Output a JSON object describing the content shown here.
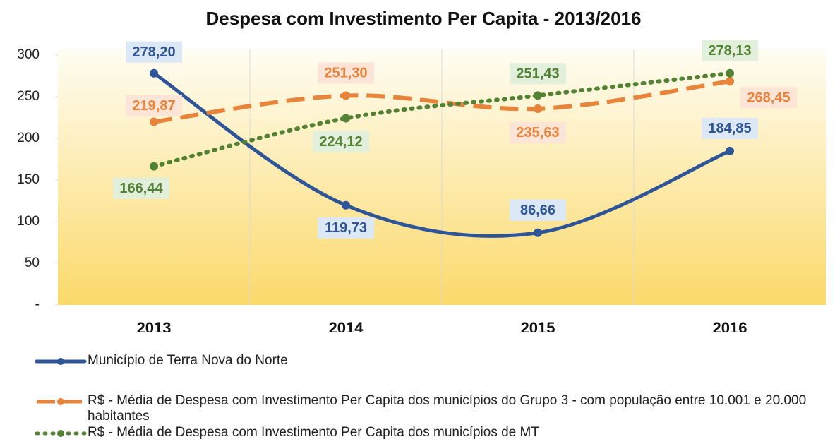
{
  "chart_data": {
    "type": "line",
    "title": "Despesa com Investimento Per Capita - 2013/2016",
    "categories": [
      "2013",
      "2014",
      "2015",
      "2016"
    ],
    "ylim": [
      0,
      300
    ],
    "yticks": [
      {
        "value": 0,
        "label": "-"
      },
      50,
      100,
      150,
      200,
      250,
      300
    ],
    "grid": true,
    "smooth": true,
    "legend": "bottom",
    "series": [
      {
        "name": "Município de Terra Nova do Norte",
        "color": "#2e5597",
        "dash": "solid",
        "values": [
          278.2,
          119.73,
          86.66,
          184.85
        ],
        "value_labels": [
          "278,20",
          "119,73",
          "86,66",
          "184,85"
        ]
      },
      {
        "name": "R$ - Média de Despesa com Investimento Per Capita dos municípios do Grupo 3 - com população entre 10.001 e 20.000 habitantes",
        "color": "#e8833a",
        "dash": "dashed",
        "values": [
          219.87,
          251.3,
          235.63,
          268.45
        ],
        "value_labels": [
          "219,87",
          "251,30",
          "235,63",
          "268,45"
        ]
      },
      {
        "name": "R$  - Média de Despesa com Investimento Per Capita dos municípios de MT",
        "color": "#548235",
        "dash": "dotted",
        "values": [
          166.44,
          224.12,
          251.43,
          278.13
        ],
        "value_labels": [
          "166,44",
          "224,12",
          "251,43",
          "278,13"
        ]
      }
    ]
  }
}
